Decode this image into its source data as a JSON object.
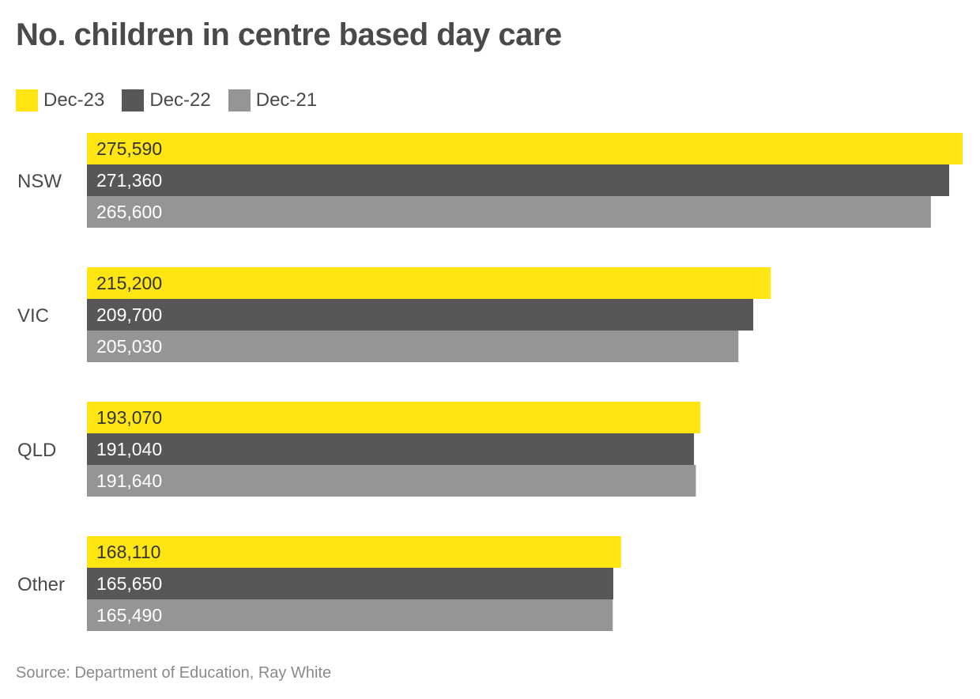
{
  "title": "No. children in centre based day care",
  "source": "Source: Department of Education, Ray White",
  "chart_data": {
    "type": "bar",
    "orientation": "horizontal",
    "title": "No. children in centre based day care",
    "xlabel": "",
    "ylabel": "",
    "categories": [
      "NSW",
      "VIC",
      "QLD",
      "Other"
    ],
    "series": [
      {
        "name": "Dec-23",
        "color": "#FFE512",
        "text_color": "#333333",
        "values": [
          275590,
          215200,
          193070,
          168110
        ]
      },
      {
        "name": "Dec-22",
        "color": "#575757",
        "text_color": "#ffffff",
        "values": [
          271360,
          209700,
          191040,
          165650
        ]
      },
      {
        "name": "Dec-21",
        "color": "#959595",
        "text_color": "#ffffff",
        "values": [
          265600,
          205030,
          191640,
          165490
        ]
      }
    ],
    "xlim": [
      0,
      275590
    ],
    "legend_position": "top-left",
    "grid": false,
    "data_labels": true
  }
}
